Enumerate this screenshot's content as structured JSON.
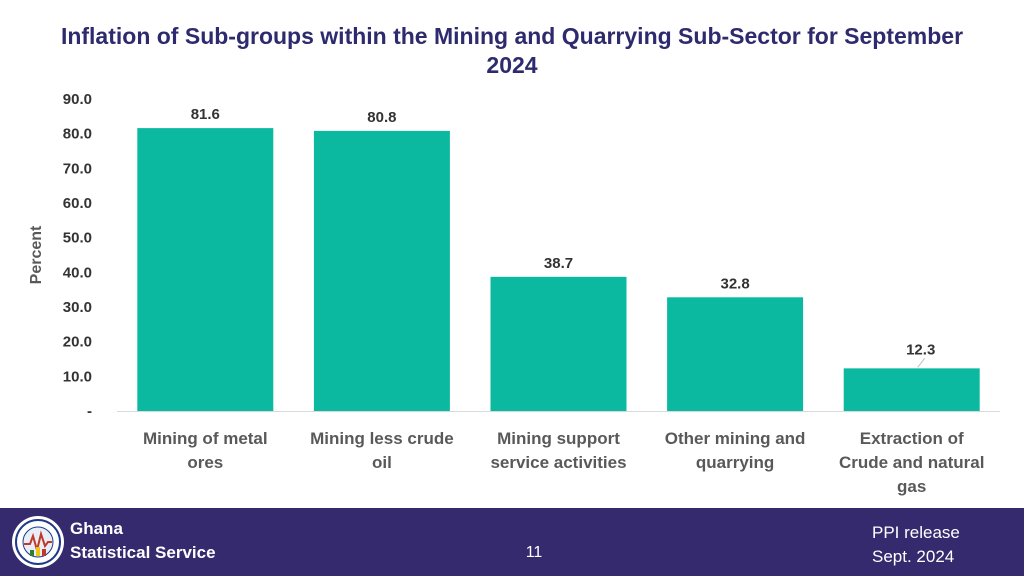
{
  "chart_data": {
    "type": "bar",
    "title": "Inflation of Sub-groups within the Mining and Quarrying Sub-Sector for September 2024",
    "ylabel": "Percent",
    "xlabel": "",
    "ylim": [
      0,
      90
    ],
    "yticks": [
      0,
      10,
      20,
      30,
      40,
      50,
      60,
      70,
      80,
      90
    ],
    "ytick_labels": [
      "-",
      "10.0",
      "20.0",
      "30.0",
      "40.0",
      "50.0",
      "60.0",
      "70.0",
      "80.0",
      "90.0"
    ],
    "categories": [
      [
        "Mining of metal",
        "ores"
      ],
      [
        "Mining less crude",
        "oil"
      ],
      [
        "Mining support",
        "service activities"
      ],
      [
        "Other mining and",
        "quarrying"
      ],
      [
        "Extraction of",
        "Crude and natural",
        "gas"
      ]
    ],
    "values": [
      81.6,
      80.8,
      38.7,
      32.8,
      12.3
    ],
    "value_labels": [
      "81.6",
      "80.8",
      "38.7",
      "32.8",
      "12.3"
    ],
    "bar_color": "#0ab9a0",
    "grid": false
  },
  "footer": {
    "org_line1": "Ghana",
    "org_line2": "Statistical Service",
    "page_number": "11",
    "release_line1": "PPI release",
    "release_line2": "Sept. 2024",
    "background_color": "#352a6e"
  }
}
